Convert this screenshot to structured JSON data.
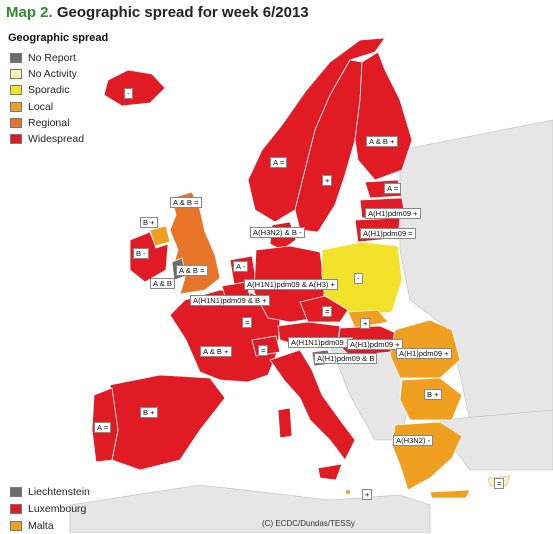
{
  "title": {
    "prefix": "Map 2.",
    "text": "Geographic spread for week 6/2013"
  },
  "legend": {
    "title": "Geographic spread",
    "items": [
      {
        "label": "No Report",
        "color": "#6d6d6d"
      },
      {
        "label": "No Activity",
        "color": "#fff2b3"
      },
      {
        "label": "Sporadic",
        "color": "#f2e22a"
      },
      {
        "label": "Local",
        "color": "#f0a020"
      },
      {
        "label": "Regional",
        "color": "#e8742a"
      },
      {
        "label": "Widespread",
        "color": "#e01b24"
      }
    ]
  },
  "small_countries": [
    {
      "label": "Liechtenstein",
      "color": "#6d6d6d"
    },
    {
      "label": "Luxembourg",
      "color": "#e01b24"
    },
    {
      "label": "Malta",
      "color": "#f0a020"
    }
  ],
  "credit": "(C) ECDC/Dundas/TESSy",
  "labels": {
    "iceland": "-",
    "norway": "A =",
    "sweden": "+",
    "finland": "A & B +",
    "estonia": "A =",
    "latvia": "A(H1)pdm09 +",
    "lithuania": "A(H1)pdm09 =",
    "denmark": "A(H3N2) & B -",
    "scotland": "A & B =",
    "n_ireland": "B +",
    "ireland": "B -",
    "wales": "A & B",
    "england": "A & B =",
    "netherlands": "A -",
    "germany": "A(H1N1)pdm09 & A(H3) +",
    "belgium": "A(H1N1)pdm09 & B +",
    "poland": "-",
    "czech": "=",
    "slovakia": "+",
    "luxembourg_lbl": "=",
    "austria": "A(H1N1)pdm09 +",
    "hungary": "A(H1)pdm09 +",
    "slovenia": "A(H1)pdm09 & B",
    "romania": "A(H1)pdm09 +",
    "france": "A & B +",
    "switzerland": "=",
    "bulgaria": "B +",
    "spain": "B +",
    "portugal": "A =",
    "greece": "A(H3N2) -",
    "malta_lbl": "+",
    "cyprus": "="
  }
}
